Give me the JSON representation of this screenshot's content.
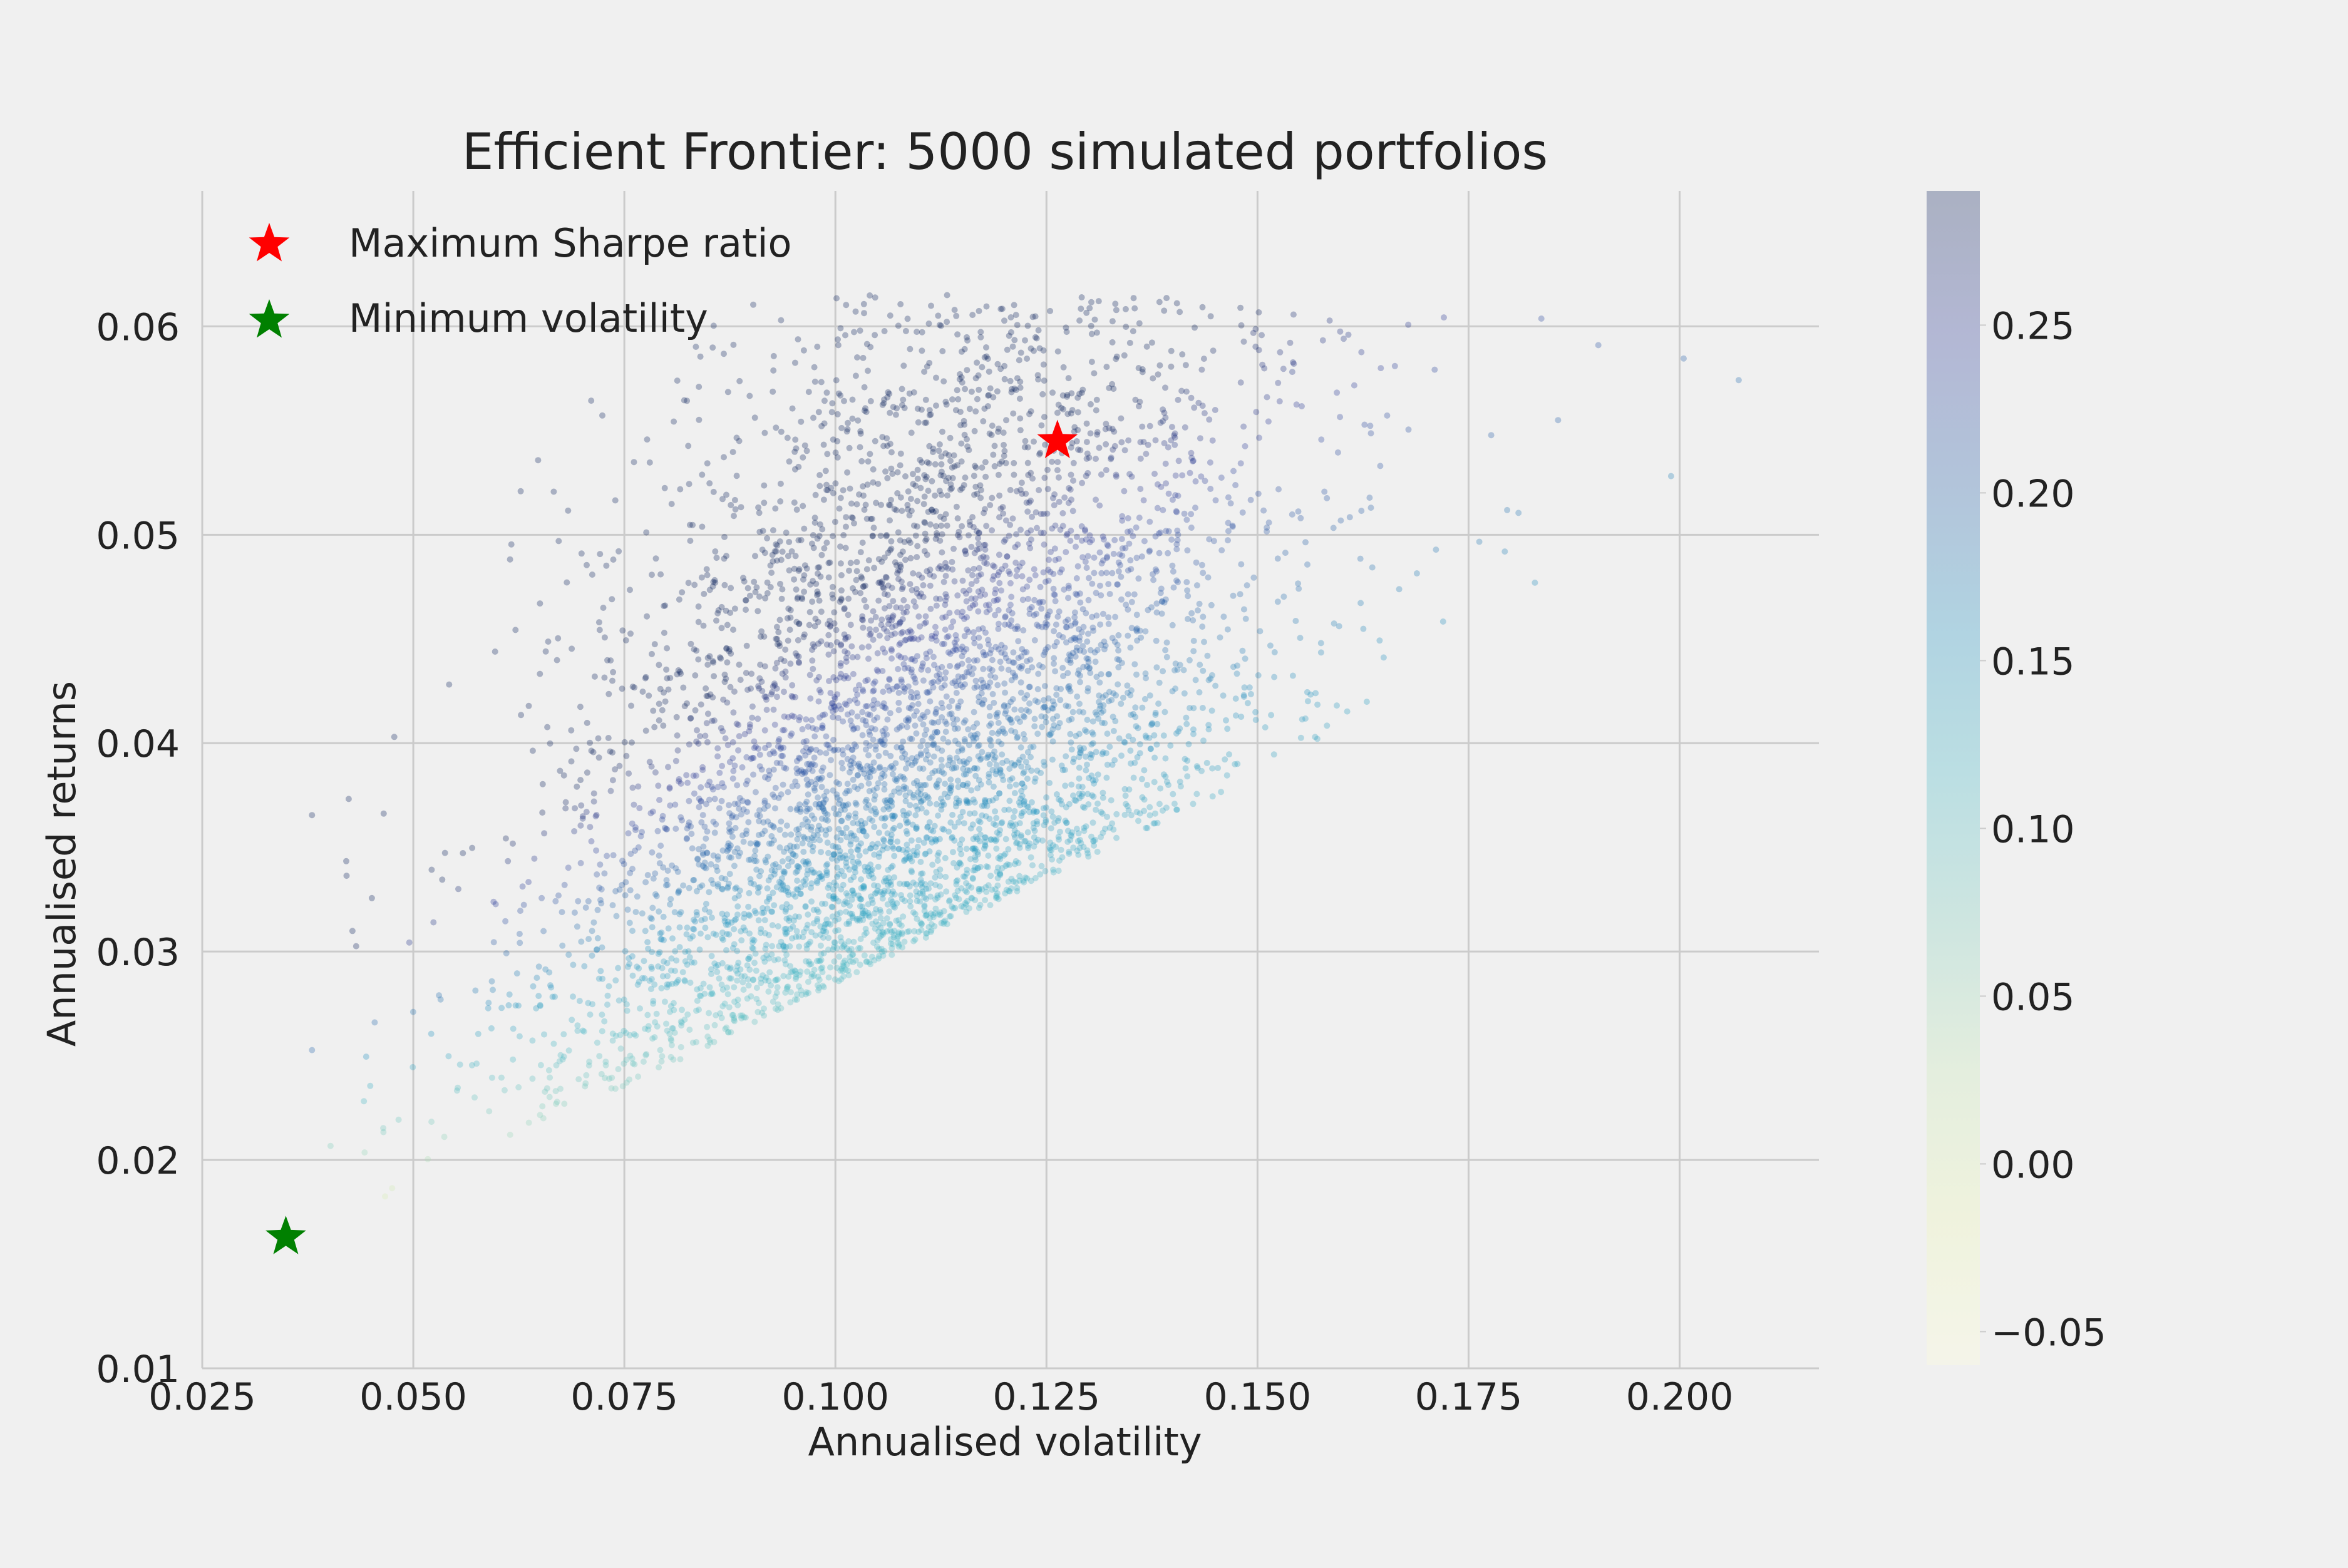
{
  "chart_data": {
    "type": "scatter",
    "title": "Efficient Frontier: 5000 simulated portfolios",
    "xlabel": "Annualised volatility",
    "ylabel": "Annualised returns",
    "xlim": [
      0.025,
      0.2165
    ],
    "ylim": [
      0.01,
      0.0665
    ],
    "x_ticks": [
      0.025,
      0.05,
      0.075,
      0.1,
      0.125,
      0.15,
      0.175,
      0.2
    ],
    "x_tick_labels": [
      "0.025",
      "0.050",
      "0.075",
      "0.100",
      "0.125",
      "0.150",
      "0.175",
      "0.200"
    ],
    "y_ticks": [
      0.01,
      0.02,
      0.03,
      0.04,
      0.05,
      0.06
    ],
    "y_tick_labels": [
      "0.01",
      "0.02",
      "0.03",
      "0.04",
      "0.05",
      "0.06"
    ],
    "grid": true,
    "n_portfolios": 5000,
    "colorbar": {
      "range": [
        -0.06,
        0.29
      ],
      "ticks": [
        -0.05,
        0.0,
        0.05,
        0.1,
        0.15,
        0.2,
        0.25
      ],
      "tick_labels": [
        "−0.05",
        "0.00",
        "0.05",
        "0.10",
        "0.15",
        "0.20",
        "0.25"
      ],
      "colormap": "YlGnBu",
      "alpha": 0.3
    },
    "legend": {
      "placement": "top-left",
      "entries": [
        {
          "label": "Maximum Sharpe ratio",
          "color": "#ff0000",
          "marker": "star"
        },
        {
          "label": "Minimum volatility",
          "color": "#008000",
          "marker": "star"
        }
      ]
    },
    "highlight_points": [
      {
        "name": "max-sharpe",
        "x": 0.1263,
        "y": 0.0545,
        "color": "#ff0000"
      },
      {
        "name": "min-volatility",
        "x": 0.0349,
        "y": 0.0163,
        "color": "#008000"
      }
    ],
    "colors": {
      "background": "#f0f0f0",
      "grid": "#cbcbcb",
      "text": "#222222"
    }
  }
}
